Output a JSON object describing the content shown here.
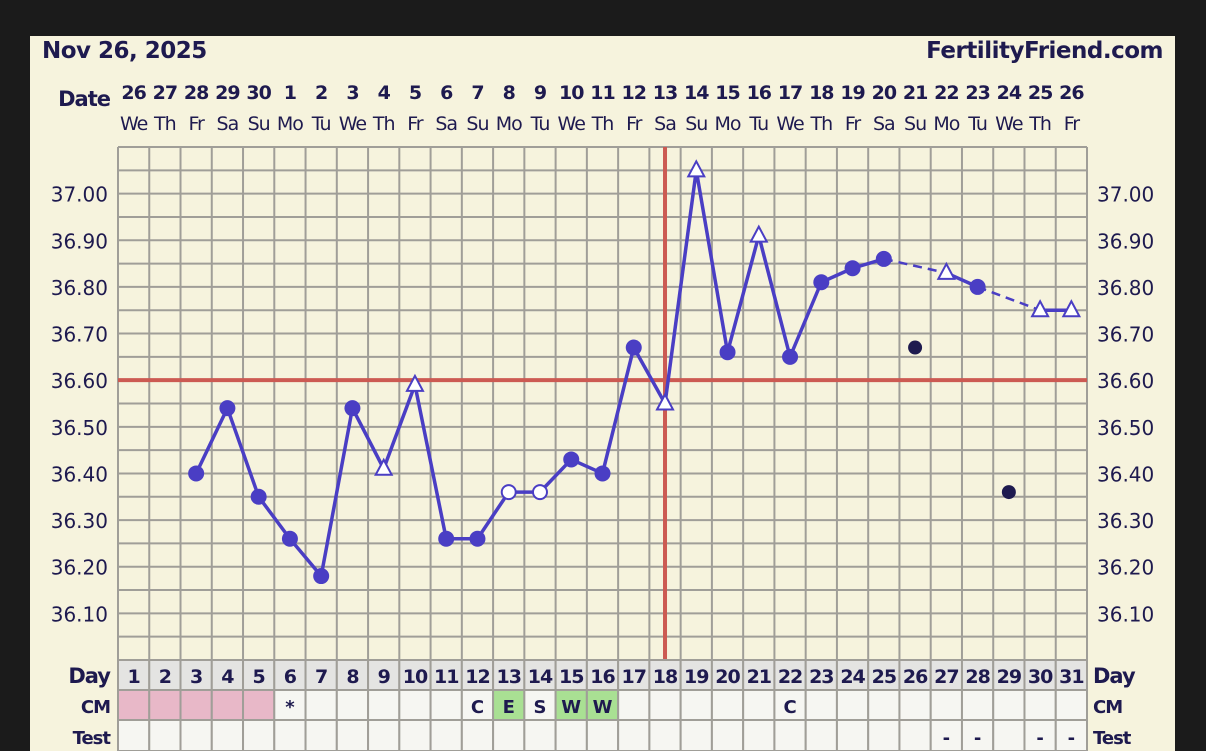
{
  "header": {
    "date": "Nov 26, 2025",
    "site": "FertilityFriend.com"
  },
  "labels": {
    "date": "Date",
    "day": "Day",
    "cm": "CM",
    "test": "Test"
  },
  "colors": {
    "line": "#4a3ec4",
    "coverline": "#cc5a52",
    "excluded": "#1e1a4f",
    "text": "#1e1a4f",
    "cm_period": "#e8b8c8",
    "cm_fertile": "#a9e093"
  },
  "chart_data": {
    "type": "line",
    "ylim": [
      36.0,
      37.1
    ],
    "yticks": [
      "36.10",
      "36.20",
      "36.30",
      "36.40",
      "36.50",
      "36.60",
      "36.70",
      "36.80",
      "36.90",
      "37.00"
    ],
    "grid": true,
    "coverline": 36.6,
    "ovulation_day": 18,
    "days": [
      1,
      2,
      3,
      4,
      5,
      6,
      7,
      8,
      9,
      10,
      11,
      12,
      13,
      14,
      15,
      16,
      17,
      18,
      19,
      20,
      21,
      22,
      23,
      24,
      25,
      26,
      27,
      28,
      29,
      30,
      31
    ],
    "dates": [
      "26",
      "27",
      "28",
      "29",
      "30",
      "1",
      "2",
      "3",
      "4",
      "5",
      "6",
      "7",
      "8",
      "9",
      "10",
      "11",
      "12",
      "13",
      "14",
      "15",
      "16",
      "17",
      "18",
      "19",
      "20",
      "21",
      "22",
      "23",
      "24",
      "25",
      "26"
    ],
    "weekdays": [
      "We",
      "Th",
      "Fr",
      "Sa",
      "Su",
      "Mo",
      "Tu",
      "We",
      "Th",
      "Fr",
      "Sa",
      "Su",
      "Mo",
      "Tu",
      "We",
      "Th",
      "Fr",
      "Sa",
      "Su",
      "Mo",
      "Tu",
      "We",
      "Th",
      "Fr",
      "Sa",
      "Su",
      "Mo",
      "Tu",
      "We",
      "Th",
      "Fr"
    ],
    "temps": [
      null,
      null,
      36.4,
      36.54,
      36.35,
      36.26,
      36.18,
      36.54,
      36.41,
      36.59,
      36.26,
      36.26,
      36.36,
      36.36,
      36.43,
      36.4,
      36.67,
      36.55,
      37.05,
      36.66,
      36.91,
      36.65,
      36.81,
      36.84,
      36.86,
      36.67,
      36.83,
      36.8,
      36.36,
      36.75,
      36.75
    ],
    "markers": [
      "",
      "",
      "filled",
      "filled",
      "filled",
      "filled",
      "filled",
      "filled",
      "triangle",
      "triangle",
      "filled",
      "filled",
      "open",
      "open",
      "filled",
      "filled",
      "filled",
      "triangle",
      "triangle",
      "filled",
      "triangle",
      "filled",
      "filled",
      "filled",
      "filled",
      "excluded",
      "triangle",
      "filled",
      "excluded",
      "triangle",
      "triangle"
    ],
    "cm": [
      "",
      "",
      "",
      "",
      "",
      "*",
      "",
      "",
      "",
      "",
      "",
      "C",
      "E",
      "S",
      "W",
      "W",
      "",
      "",
      "",
      "",
      "",
      "C",
      "",
      "",
      "",
      "",
      "",
      "",
      "",
      "",
      ""
    ],
    "cm_type": [
      "period",
      "period",
      "period",
      "period",
      "period",
      "",
      "",
      "",
      "",
      "",
      "",
      "",
      "fertile",
      "",
      "fertile",
      "fertile",
      "",
      "",
      "",
      "",
      "",
      "",
      "",
      "",
      "",
      "",
      "",
      "",
      "",
      "",
      ""
    ],
    "test": [
      "",
      "",
      "",
      "",
      "",
      "",
      "",
      "",
      "",
      "",
      "",
      "",
      "",
      "",
      "",
      "",
      "",
      "",
      "",
      "",
      "",
      "",
      "",
      "",
      "",
      "",
      "-",
      "-",
      "",
      "-",
      "-"
    ]
  }
}
